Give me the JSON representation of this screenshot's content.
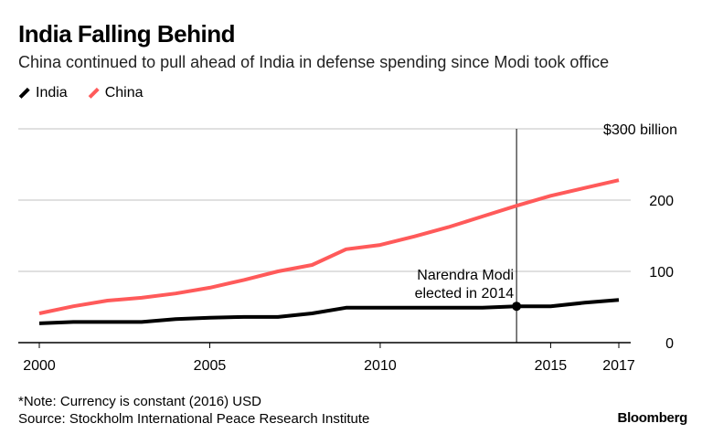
{
  "title": "India Falling Behind",
  "subtitle": "China continued to pull ahead of India in defense spending since Modi took office",
  "footnote": "*Note: Currency is constant (2016) USD",
  "source": "Source: Stockholm International Peace Research Institute",
  "brand": "Bloomberg",
  "chart_data": {
    "type": "line",
    "x": [
      2000,
      2001,
      2002,
      2003,
      2004,
      2005,
      2006,
      2007,
      2008,
      2009,
      2010,
      2011,
      2012,
      2013,
      2014,
      2015,
      2016,
      2017
    ],
    "series": [
      {
        "name": "India",
        "color": "#000000",
        "values": [
          27,
          29,
          29,
          29,
          33,
          35,
          36,
          36,
          41,
          49,
          49,
          49,
          49,
          49,
          51,
          51,
          56,
          60
        ]
      },
      {
        "name": "China",
        "color": "#ff5a5a",
        "values": [
          41,
          51,
          59,
          63,
          69,
          77,
          88,
          100,
          109,
          131,
          137,
          149,
          162,
          177,
          192,
          206,
          217,
          228
        ]
      }
    ],
    "x_ticks": [
      "2000",
      "2005",
      "2010",
      "2015",
      "2017"
    ],
    "y_ticks": [
      "0",
      "100",
      "200",
      "$300 billion"
    ],
    "y_tick_values": [
      0,
      100,
      200,
      300
    ],
    "ylim": [
      0,
      300
    ],
    "xlim": [
      2000,
      2017
    ],
    "grid": true,
    "legend": "top-left",
    "annotation": {
      "x": 2014,
      "series": "India",
      "lines": [
        "Narendra Modi",
        "elected in 2014"
      ]
    }
  }
}
